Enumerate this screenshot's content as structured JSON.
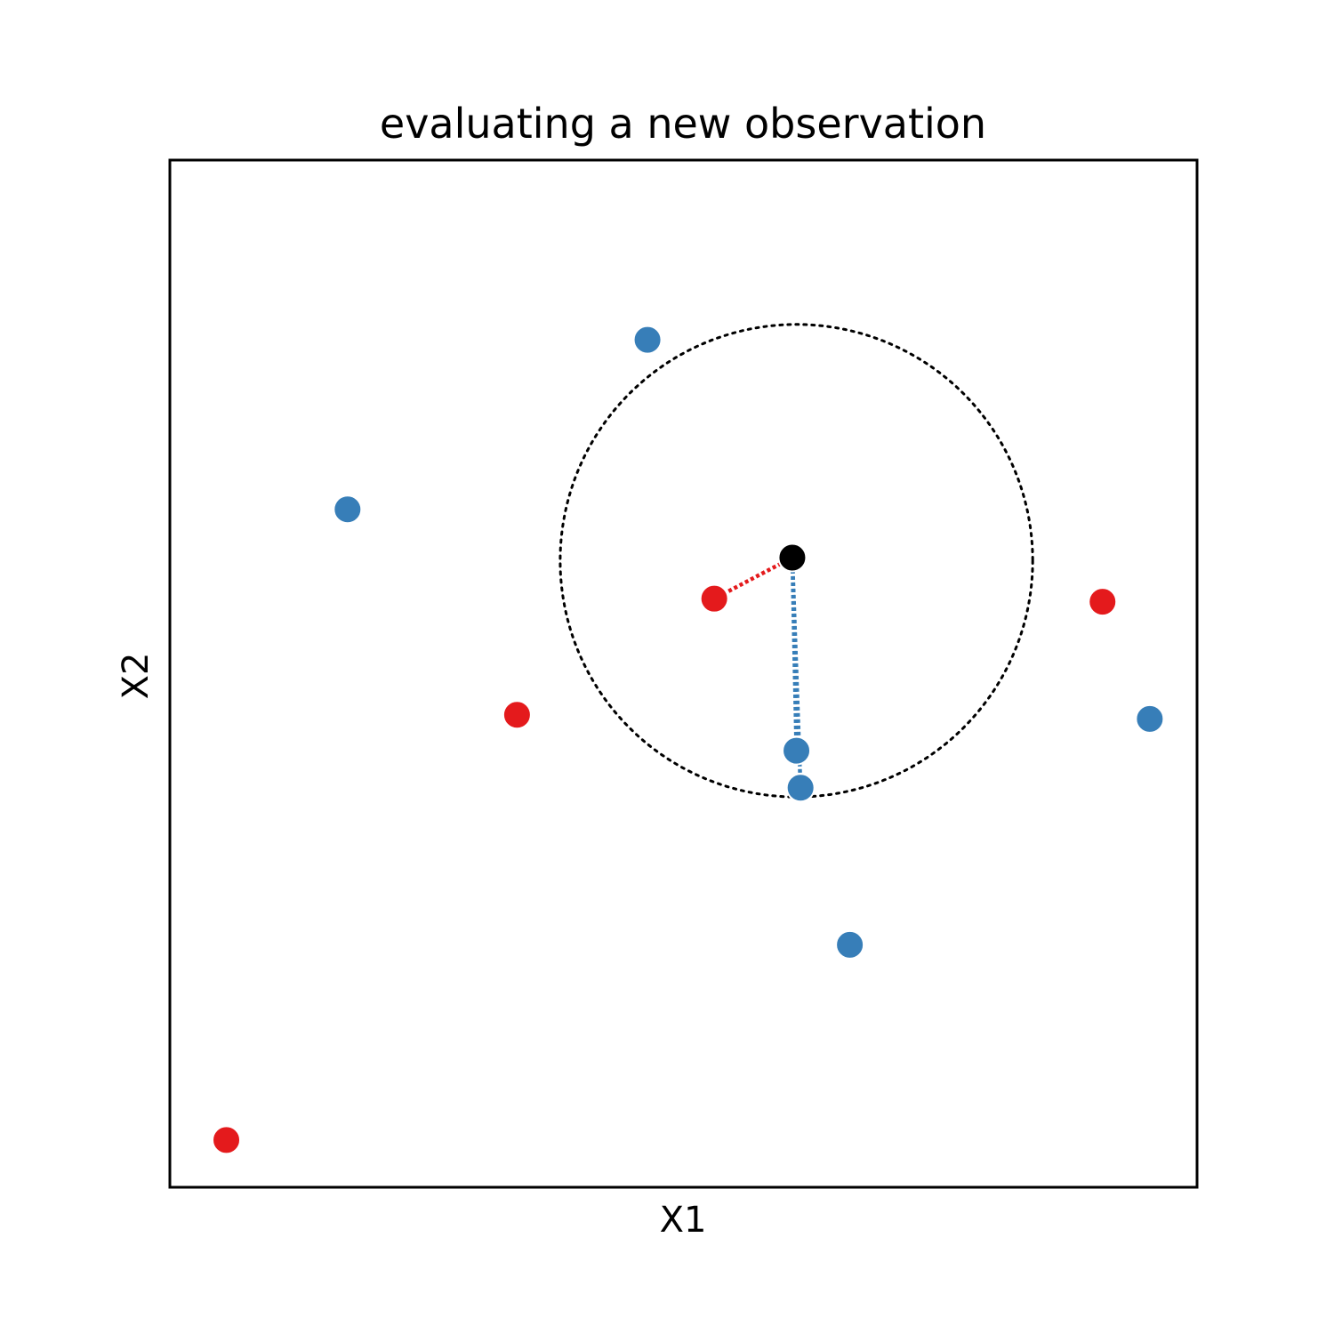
{
  "chart_data": {
    "type": "scatter",
    "title": "evaluating a new observation",
    "xlabel": "X1",
    "ylabel": "X2",
    "xlim": [
      0,
      10
    ],
    "ylim": [
      0,
      10
    ],
    "grid": false,
    "ticks": "none",
    "colors": {
      "red": "#e41a1c",
      "blue": "#377eb8",
      "new": "#000000",
      "circle": "#000000"
    },
    "series": [
      {
        "class": "red",
        "color": "#e41a1c",
        "points": [
          {
            "x": 0.55,
            "y": 0.46
          },
          {
            "x": 3.38,
            "y": 4.6
          },
          {
            "x": 5.3,
            "y": 5.73
          },
          {
            "x": 9.08,
            "y": 5.7
          }
        ]
      },
      {
        "class": "blue",
        "color": "#377eb8",
        "points": [
          {
            "x": 1.73,
            "y": 6.6
          },
          {
            "x": 4.65,
            "y": 8.25
          },
          {
            "x": 6.1,
            "y": 4.25
          },
          {
            "x": 6.14,
            "y": 3.89
          },
          {
            "x": 6.62,
            "y": 2.36
          },
          {
            "x": 9.54,
            "y": 4.56
          }
        ]
      }
    ],
    "new_observation": {
      "x": 6.06,
      "y": 6.13,
      "color": "#000000"
    },
    "neighborhood_circle": {
      "cx": 6.1,
      "cy": 6.1,
      "r": 2.3,
      "style": "dotted",
      "color": "#000000"
    },
    "connections": [
      {
        "to": {
          "x": 5.3,
          "y": 5.73
        },
        "color": "#e41a1c",
        "style": "dotted"
      },
      {
        "to": {
          "x": 6.1,
          "y": 4.25
        },
        "color": "#377eb8",
        "style": "dotted"
      },
      {
        "to": {
          "x": 6.14,
          "y": 3.89
        },
        "color": "#377eb8",
        "style": "dotted"
      }
    ]
  }
}
